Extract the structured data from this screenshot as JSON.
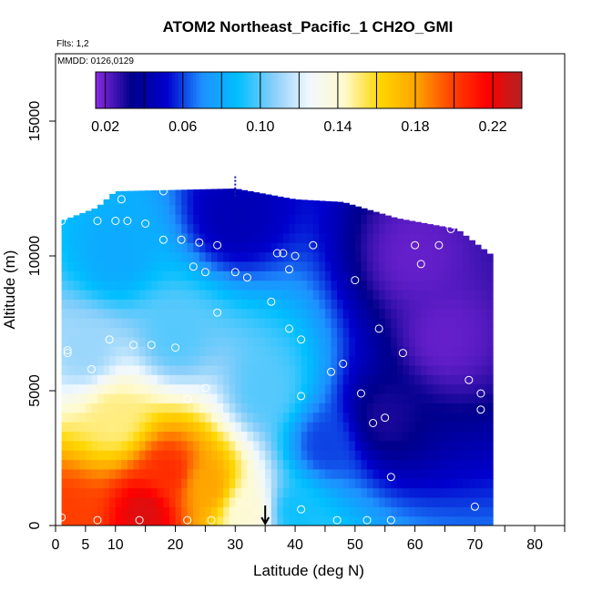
{
  "header": {
    "title": "ATOM2 Northeast_Pacific_1 CH2O_GMI",
    "flights_label": "Flts: 1,2",
    "dates_label": "MMDD: 0126,0129"
  },
  "chart_data": {
    "type": "heatmap",
    "title": "ATOM2 Northeast_Pacific_1 CH2O_GMI",
    "xlabel": "Latitude (deg N)",
    "ylabel": "Altitude (m)",
    "xlim": [
      0,
      85
    ],
    "ylim": [
      0,
      17500
    ],
    "x_ticks": [
      "0",
      "5",
      "10",
      "20",
      "30",
      "40",
      "50",
      "60",
      "70",
      "80"
    ],
    "x_tick_values": [
      0,
      5,
      10,
      20,
      30,
      40,
      50,
      60,
      70,
      80
    ],
    "x_minor_tick_values": [
      15,
      25,
      35,
      45,
      55,
      65,
      75,
      85
    ],
    "y_ticks": [
      "0",
      "5000",
      "10000",
      "15000"
    ],
    "y_tick_values": [
      0,
      5000,
      10000,
      15000
    ],
    "colorbar": {
      "range": [
        0.015,
        0.235
      ],
      "labels": [
        "0.02",
        "0.06",
        "0.10",
        "0.14",
        "0.18",
        "0.22"
      ],
      "label_values": [
        0.02,
        0.06,
        0.1,
        0.14,
        0.18,
        0.22
      ],
      "colors": [
        "#8a2be2",
        "#00008b",
        "#0000cd",
        "#1e90ff",
        "#00bfff",
        "#87cefa",
        "#f0f8ff",
        "#fffacd",
        "#ffd700",
        "#ffa500",
        "#ff4500",
        "#ff0000",
        "#b22222"
      ]
    },
    "field_extent": {
      "altitude_top_by_latitude": [
        [
          1,
          11300
        ],
        [
          7,
          11800
        ],
        [
          10,
          12400
        ],
        [
          30,
          12500
        ],
        [
          40,
          12100
        ],
        [
          48,
          12000
        ],
        [
          57,
          11400
        ],
        [
          67,
          11000
        ],
        [
          73,
          10000
        ]
      ],
      "altitude_bottom": 0
    },
    "field_samples": [
      {
        "lat": 2,
        "alt": 500,
        "value": 0.2
      },
      {
        "lat": 15,
        "alt": 500,
        "value": 0.225
      },
      {
        "lat": 19,
        "alt": 2000,
        "value": 0.205
      },
      {
        "lat": 25,
        "alt": 1500,
        "value": 0.18
      },
      {
        "lat": 32,
        "alt": 500,
        "value": 0.14
      },
      {
        "lat": 40,
        "alt": 500,
        "value": 0.09
      },
      {
        "lat": 10,
        "alt": 4000,
        "value": 0.15
      },
      {
        "lat": 5,
        "alt": 6500,
        "value": 0.11
      },
      {
        "lat": 20,
        "alt": 7000,
        "value": 0.1
      },
      {
        "lat": 35,
        "alt": 5000,
        "value": 0.1
      },
      {
        "lat": 45,
        "alt": 3000,
        "value": 0.06
      },
      {
        "lat": 55,
        "alt": 4000,
        "value": 0.03
      },
      {
        "lat": 65,
        "alt": 7000,
        "value": 0.02
      },
      {
        "lat": 60,
        "alt": 10000,
        "value": 0.02
      },
      {
        "lat": 10,
        "alt": 10000,
        "value": 0.08
      },
      {
        "lat": 30,
        "alt": 11500,
        "value": 0.045
      }
    ],
    "observation_points": [
      [
        1,
        11300
      ],
      [
        7,
        11300
      ],
      [
        10,
        11300
      ],
      [
        12,
        11300
      ],
      [
        15,
        11200
      ],
      [
        11,
        12100
      ],
      [
        18,
        12400
      ],
      [
        18,
        10600
      ],
      [
        21,
        10600
      ],
      [
        24,
        10500
      ],
      [
        27,
        10400
      ],
      [
        23,
        9600
      ],
      [
        25,
        9400
      ],
      [
        30,
        9400
      ],
      [
        32,
        9200
      ],
      [
        37,
        10100
      ],
      [
        38,
        10100
      ],
      [
        40,
        10000
      ],
      [
        39,
        9500
      ],
      [
        43,
        10400
      ],
      [
        50,
        9100
      ],
      [
        60,
        10400
      ],
      [
        61,
        9700
      ],
      [
        64,
        10400
      ],
      [
        66,
        11000
      ],
      [
        36,
        8300
      ],
      [
        27,
        7900
      ],
      [
        39,
        7300
      ],
      [
        41,
        6900
      ],
      [
        54,
        7300
      ],
      [
        58,
        6400
      ],
      [
        9,
        6900
      ],
      [
        13,
        6700
      ],
      [
        16,
        6700
      ],
      [
        20,
        6600
      ],
      [
        2,
        6500
      ],
      [
        2,
        6400
      ],
      [
        6,
        5800
      ],
      [
        46,
        5700
      ],
      [
        48,
        6000
      ],
      [
        51,
        4900
      ],
      [
        41,
        4800
      ],
      [
        25,
        5100
      ],
      [
        22,
        4700
      ],
      [
        69,
        5400
      ],
      [
        71,
        4900
      ],
      [
        71,
        4300
      ],
      [
        55,
        4000
      ],
      [
        53,
        3800
      ],
      [
        56,
        1800
      ],
      [
        70,
        700
      ],
      [
        41,
        600
      ],
      [
        1,
        300
      ],
      [
        7,
        200
      ],
      [
        14,
        200
      ],
      [
        22,
        200
      ],
      [
        26,
        200
      ],
      [
        47,
        200
      ],
      [
        52,
        200
      ],
      [
        56,
        200
      ]
    ],
    "markers": {
      "arrow_latitude": 35,
      "dashed_line_latitude": 30
    }
  }
}
